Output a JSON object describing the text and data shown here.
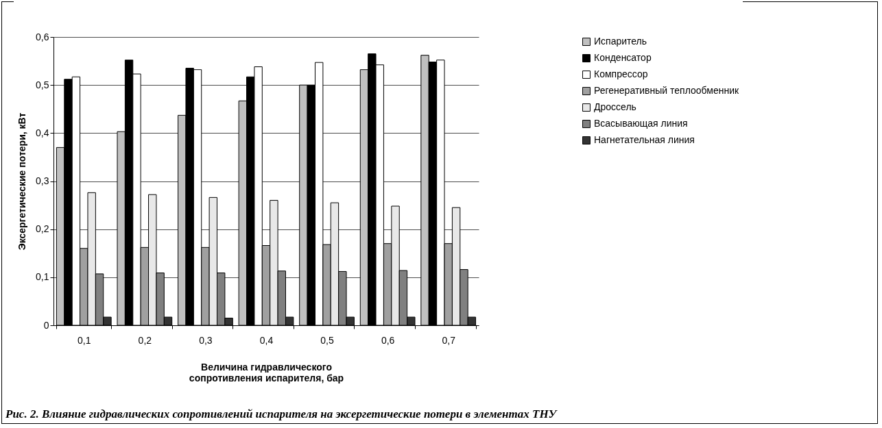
{
  "chart_data": {
    "type": "bar",
    "xlabel": "Величина гидравлического сопротивления испарителя, бар",
    "ylabel": "Эксергетические потери, кВт",
    "categories": [
      "0,1",
      "0,2",
      "0,3",
      "0,4",
      "0,5",
      "0,6",
      "0,7"
    ],
    "series": [
      {
        "name": "Испаритель",
        "color": "#c0c0c0",
        "values": [
          0.37,
          0.403,
          0.437,
          0.467,
          0.5,
          0.532,
          0.562
        ]
      },
      {
        "name": "Конденсатор",
        "color": "#000000",
        "values": [
          0.512,
          0.552,
          0.535,
          0.517,
          0.5,
          0.565,
          0.548
        ]
      },
      {
        "name": "Компрессор",
        "color": "#ffffff",
        "values": [
          0.517,
          0.523,
          0.532,
          0.538,
          0.547,
          0.542,
          0.552
        ]
      },
      {
        "name": "Регенеративный теплообменник",
        "color": "#a0a0a0",
        "values": [
          0.16,
          0.162,
          0.162,
          0.166,
          0.168,
          0.17,
          0.17
        ]
      },
      {
        "name": "Дроссель",
        "color": "#e8e8e8",
        "values": [
          0.276,
          0.272,
          0.266,
          0.26,
          0.255,
          0.248,
          0.245
        ]
      },
      {
        "name": "Всасывающая линия",
        "color": "#808080",
        "values": [
          0.107,
          0.109,
          0.109,
          0.113,
          0.112,
          0.114,
          0.116
        ]
      },
      {
        "name": "Нагнетательная линия",
        "color": "#333333",
        "values": [
          0.017,
          0.017,
          0.015,
          0.017,
          0.017,
          0.017,
          0.017
        ]
      }
    ],
    "ylim": [
      0,
      0.6
    ],
    "yticks": [
      {
        "value": 0,
        "label": "0"
      },
      {
        "value": 0.1,
        "label": "0,1"
      },
      {
        "value": 0.2,
        "label": "0,2"
      },
      {
        "value": 0.3,
        "label": "0,3"
      },
      {
        "value": 0.4,
        "label": "0,4"
      },
      {
        "value": 0.5,
        "label": "0,5"
      },
      {
        "value": 0.6,
        "label": "0,6"
      }
    ],
    "grid": "y",
    "legend": "right",
    "annotations": [
      "Рис. 2. Влияние гидравлических сопротивлений испарителя на эксергетические потери в элементах ТНУ"
    ]
  }
}
